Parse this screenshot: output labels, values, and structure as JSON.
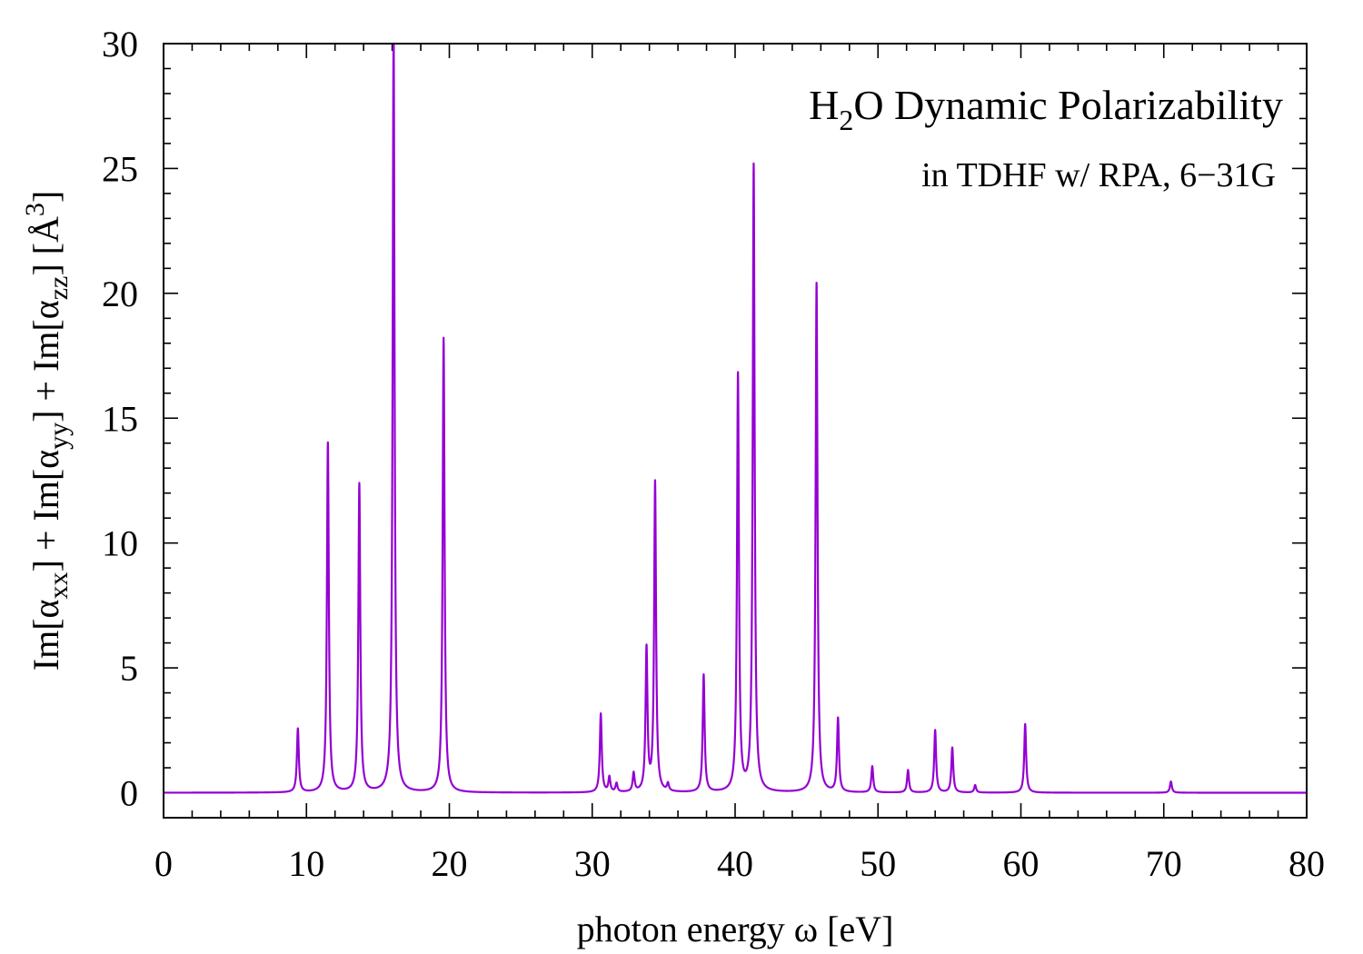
{
  "chart_data": {
    "type": "line",
    "title": "H₂O Dynamic Polarizability",
    "title_parts": {
      "base": "H",
      "sub": "2",
      "rest": "O Dynamic Polarizability"
    },
    "subtitle": "in TDHF w/ RPA, 6−31G",
    "xlabel": "photon energy ω [eV]",
    "ylabel": "Im[αxx] + Im[αyy] + Im[αzz]  [Å3]",
    "ylabel_parts": {
      "p1": "Im[α",
      "s1": "xx",
      "p2": "] + Im[α",
      "s2": "yy",
      "p3": "] + Im[α",
      "s3": "zz",
      "p4": "]  [Å",
      "sup": "3",
      "p5": "]"
    },
    "xlim": [
      0,
      80
    ],
    "ylim": [
      -1,
      30
    ],
    "x_ticks": [
      "0",
      "10",
      "20",
      "30",
      "40",
      "50",
      "60",
      "70",
      "80"
    ],
    "y_ticks": [
      "0",
      "5",
      "10",
      "15",
      "20",
      "25",
      "30"
    ],
    "grid": false,
    "legend": "none",
    "line_color": "#9400D3",
    "series": [
      {
        "peaks": [
          {
            "x": 9.4,
            "y": 2.55
          },
          {
            "x": 11.5,
            "y": 14.0
          },
          {
            "x": 13.7,
            "y": 12.35
          },
          {
            "x": 16.1,
            "y": 30.5
          },
          {
            "x": 19.6,
            "y": 18.2
          },
          {
            "x": 30.6,
            "y": 3.15
          },
          {
            "x": 31.2,
            "y": 0.6
          },
          {
            "x": 31.7,
            "y": 0.35
          },
          {
            "x": 32.9,
            "y": 0.75
          },
          {
            "x": 33.8,
            "y": 5.7
          },
          {
            "x": 34.4,
            "y": 12.4
          },
          {
            "x": 35.3,
            "y": 0.3
          },
          {
            "x": 37.8,
            "y": 4.7
          },
          {
            "x": 40.2,
            "y": 16.7
          },
          {
            "x": 41.3,
            "y": 25.1
          },
          {
            "x": 45.7,
            "y": 20.4
          },
          {
            "x": 47.2,
            "y": 2.95
          },
          {
            "x": 49.6,
            "y": 1.05
          },
          {
            "x": 52.1,
            "y": 0.9
          },
          {
            "x": 54.0,
            "y": 2.5
          },
          {
            "x": 55.2,
            "y": 1.8
          },
          {
            "x": 56.8,
            "y": 0.3
          },
          {
            "x": 60.3,
            "y": 2.75
          },
          {
            "x": 70.5,
            "y": 0.45
          }
        ]
      }
    ]
  }
}
